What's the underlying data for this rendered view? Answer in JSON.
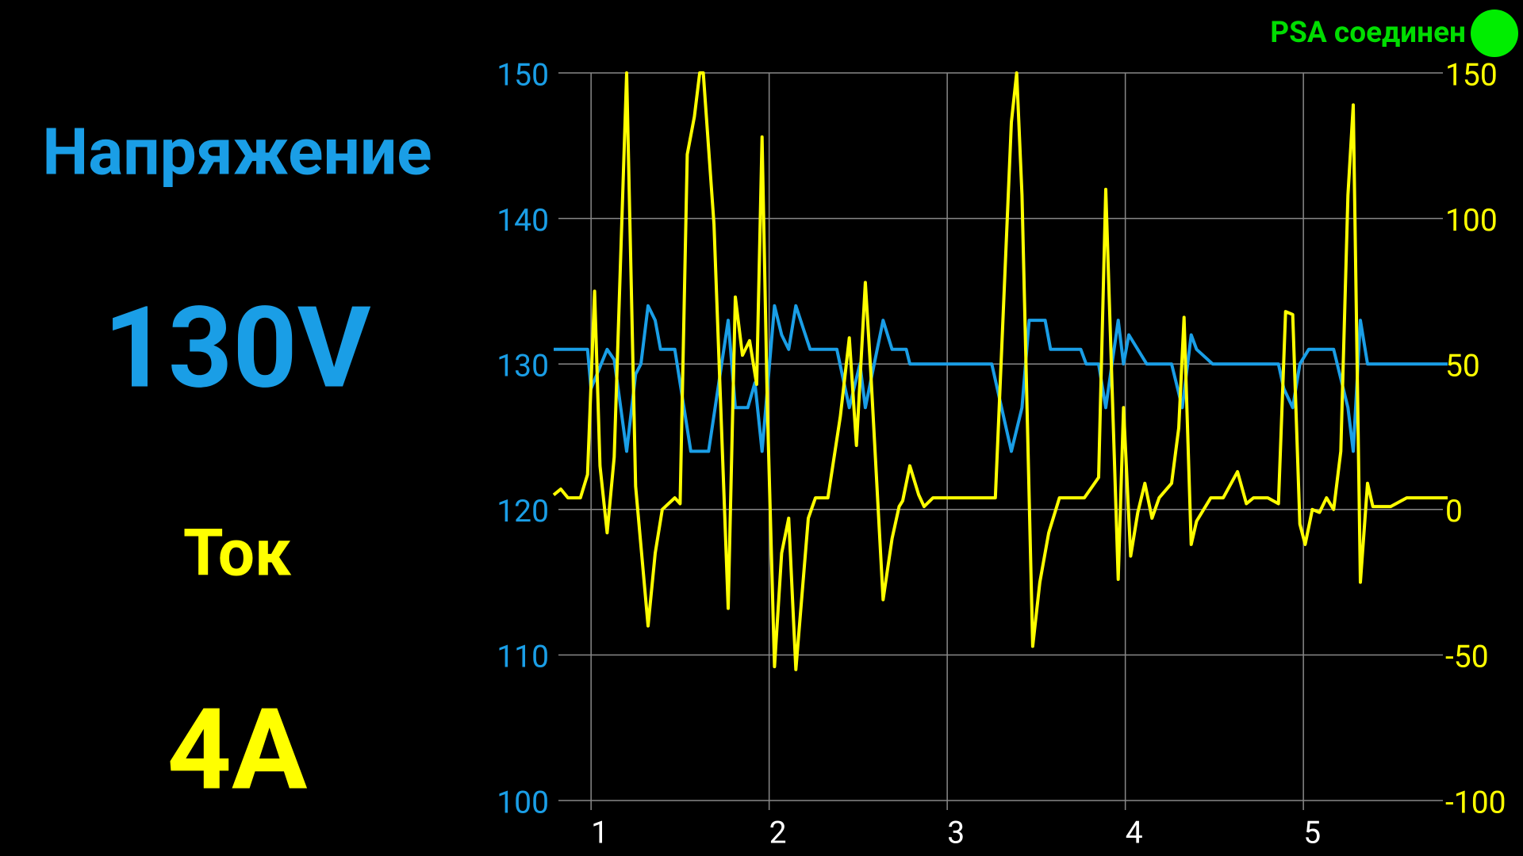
{
  "status": {
    "label": "PSA соединен"
  },
  "voltage": {
    "label": "Напряжение",
    "value": "130V"
  },
  "current": {
    "label": "Ток",
    "value": "4A"
  },
  "chart_data": {
    "type": "line",
    "xlim": [
      0.79,
      5.81
    ],
    "xticks": [
      1,
      2,
      3,
      4,
      5
    ],
    "ylim": [
      100,
      150
    ],
    "yticks": [
      100,
      110,
      120,
      130,
      140,
      150
    ],
    "y2lim": [
      -100,
      150
    ],
    "y2ticks": [
      -100,
      -50,
      0,
      50,
      100,
      150
    ],
    "grid": true,
    "series": [
      {
        "color": "#1a9ee6",
        "axis": "y",
        "x": [
          0.79,
          0.98,
          1.0,
          1.09,
          1.13,
          1.2,
          1.25,
          1.28,
          1.32,
          1.36,
          1.39,
          1.47,
          1.56,
          1.66,
          1.77,
          1.81,
          1.88,
          1.92,
          1.96,
          2.03,
          2.07,
          2.11,
          2.15,
          2.23,
          2.38,
          2.45,
          2.51,
          2.54,
          2.59,
          2.64,
          2.69,
          2.77,
          2.79,
          3.25,
          3.36,
          3.42,
          3.46,
          3.55,
          3.58,
          3.75,
          3.78,
          3.85,
          3.89,
          3.96,
          3.99,
          4.02,
          4.12,
          4.26,
          4.32,
          4.37,
          4.4,
          4.49,
          4.86,
          4.89,
          4.94,
          4.98,
          5.03,
          5.17,
          5.25,
          5.28,
          5.32,
          5.36,
          5.81
        ],
        "values": [
          131,
          131,
          128.3,
          131,
          130.3,
          124,
          129.3,
          130,
          134,
          133,
          131,
          131,
          124,
          124,
          133,
          127,
          127,
          128.7,
          124,
          134,
          132,
          131,
          134,
          131,
          131,
          127,
          130,
          127,
          130,
          133,
          131,
          131,
          130,
          130,
          124,
          127,
          133,
          133,
          131,
          131,
          130,
          130,
          127,
          133,
          130,
          132,
          130,
          130,
          127,
          132,
          131,
          130,
          130,
          128.3,
          127,
          130,
          131,
          131,
          127,
          124,
          133,
          130,
          130
        ]
      },
      {
        "color": "#ffff00",
        "axis": "y2",
        "x": [
          0.79,
          0.83,
          0.87,
          0.94,
          0.98,
          1.02,
          1.05,
          1.09,
          1.13,
          1.2,
          1.25,
          1.32,
          1.36,
          1.4,
          1.47,
          1.5,
          1.54,
          1.58,
          1.61,
          1.63,
          1.69,
          1.77,
          1.81,
          1.85,
          1.89,
          1.93,
          1.96,
          1.99,
          2.03,
          2.07,
          2.11,
          2.15,
          2.22,
          2.26,
          2.33,
          2.4,
          2.45,
          2.49,
          2.54,
          2.57,
          2.64,
          2.69,
          2.73,
          2.75,
          2.79,
          2.84,
          2.87,
          2.92,
          3.27,
          3.36,
          3.39,
          3.42,
          3.48,
          3.52,
          3.57,
          3.63,
          3.77,
          3.85,
          3.89,
          3.96,
          3.99,
          4.03,
          4.07,
          4.11,
          4.15,
          4.19,
          4.26,
          4.3,
          4.33,
          4.37,
          4.4,
          4.48,
          4.55,
          4.63,
          4.68,
          4.72,
          4.8,
          4.86,
          4.9,
          4.94,
          4.98,
          5.01,
          5.05,
          5.09,
          5.13,
          5.17,
          5.21,
          5.25,
          5.28,
          5.32,
          5.36,
          5.39,
          5.49,
          5.58,
          5.81
        ],
        "values": [
          5,
          7,
          4,
          4,
          12,
          75,
          15,
          -8,
          18,
          150,
          8,
          -40,
          -15,
          0,
          4,
          2,
          122,
          135,
          150,
          150,
          98,
          -34,
          73,
          53,
          58,
          43,
          128,
          35,
          -54,
          -15,
          -3,
          -55,
          -3,
          4,
          4,
          32,
          59,
          22,
          78,
          48,
          -31,
          -10,
          1,
          3,
          15,
          5,
          1,
          4,
          4,
          133,
          150,
          108,
          -47,
          -25,
          -8,
          4,
          4,
          11,
          110,
          -24,
          35,
          -16,
          -1,
          9,
          -3,
          4,
          9,
          28,
          66,
          -12,
          -4,
          4,
          4,
          13,
          2,
          4,
          4,
          2,
          68,
          67,
          -5,
          -12,
          0,
          -1,
          4,
          0,
          20,
          108,
          139,
          -25,
          9,
          1,
          1,
          4,
          4
        ]
      }
    ]
  }
}
